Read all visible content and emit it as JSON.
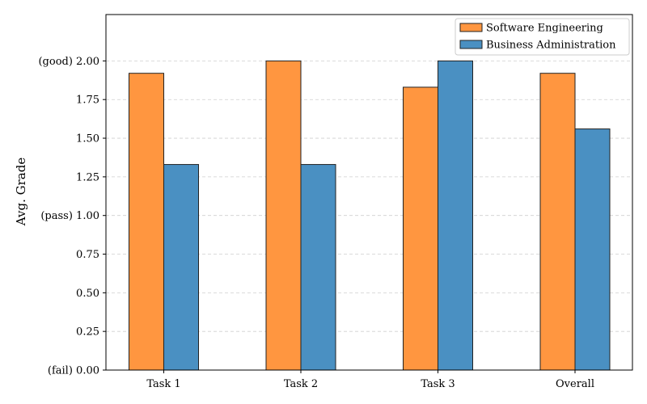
{
  "chart_data": {
    "type": "bar",
    "title": "",
    "xlabel": "",
    "ylabel": "Avg. Grade",
    "ylim": [
      0,
      2.3
    ],
    "categories": [
      "Task 1",
      "Task 2",
      "Task 3",
      "Overall"
    ],
    "series": [
      {
        "name": "Software Engineering",
        "color": "#FF9640",
        "values": [
          1.92,
          2.0,
          1.83,
          1.92
        ]
      },
      {
        "name": "Business Administration",
        "color": "#4A90C2",
        "values": [
          1.33,
          1.33,
          2.0,
          1.56
        ]
      }
    ],
    "yticks": [
      {
        "value": 0.0,
        "label": "(fail) 0.00"
      },
      {
        "value": 0.25,
        "label": "0.25"
      },
      {
        "value": 0.5,
        "label": "0.50"
      },
      {
        "value": 0.75,
        "label": "0.75"
      },
      {
        "value": 1.0,
        "label": "(pass) 1.00"
      },
      {
        "value": 1.25,
        "label": "1.25"
      },
      {
        "value": 1.5,
        "label": "1.50"
      },
      {
        "value": 1.75,
        "label": "1.75"
      },
      {
        "value": 2.0,
        "label": "(good) 2.00"
      }
    ],
    "grid": "y-dashed",
    "legend_position": "top-right"
  }
}
